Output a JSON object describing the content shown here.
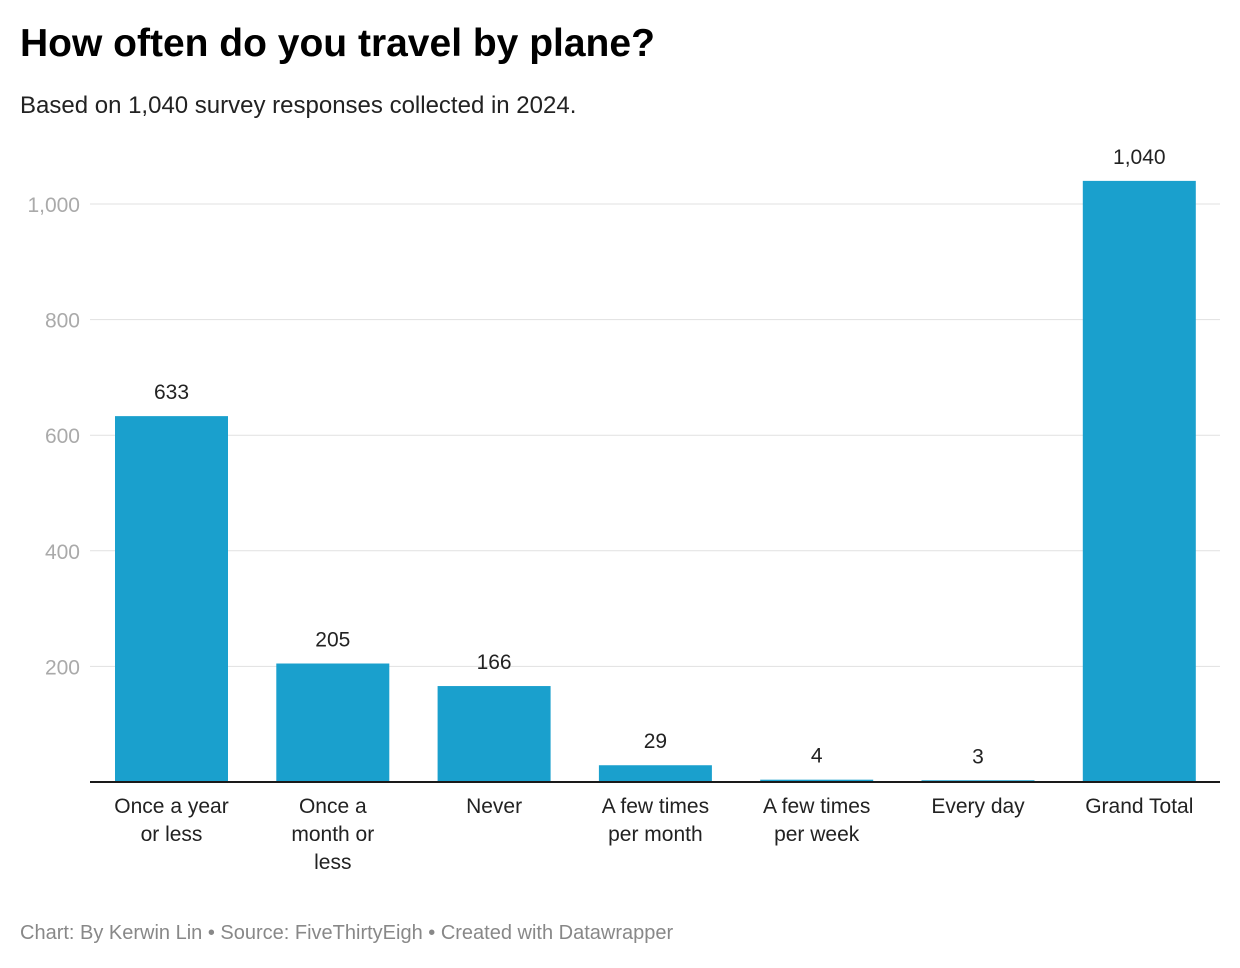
{
  "header": {
    "title": "How often do you travel by plane?",
    "subtitle": "Based on 1,040 survey responses collected in 2024."
  },
  "footer": {
    "text": "Chart: By Kerwin Lin • Source: FiveThirtyEigh • Created with Datawrapper"
  },
  "colors": {
    "bar": "#1aa0cd",
    "grid": "#e1e1e1",
    "baseline": "#1a1a1a"
  },
  "chart_data": {
    "type": "bar",
    "title": "How often do you travel by plane?",
    "subtitle": "Based on 1,040 survey responses collected in 2024.",
    "categories": [
      [
        "Once a year",
        "or less"
      ],
      [
        "Once a",
        "month or",
        "less"
      ],
      [
        "Never"
      ],
      [
        "A few times",
        "per month"
      ],
      [
        "A few times",
        "per week"
      ],
      [
        "Every day"
      ],
      [
        "Grand Total"
      ]
    ],
    "values": [
      633,
      205,
      166,
      29,
      4,
      3,
      1040
    ],
    "value_labels": [
      "633",
      "205",
      "166",
      "29",
      "4",
      "3",
      "1,040"
    ],
    "yticks": [
      200,
      400,
      600,
      800,
      1000
    ],
    "ytick_labels": [
      "200",
      "400",
      "600",
      "800",
      "1,000"
    ],
    "ylim": [
      0,
      1040
    ],
    "grid": true,
    "legend": "none"
  }
}
